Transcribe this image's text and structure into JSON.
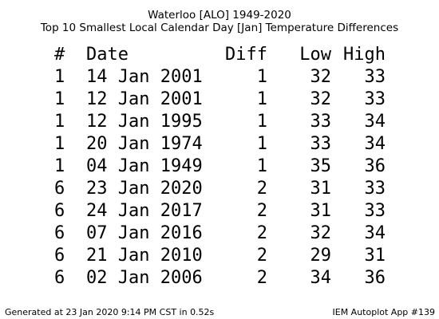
{
  "title_line1": "Waterloo [ALO] 1949-2020",
  "title_line2": "Top 10 Smallest Local Calendar Day [Jan] Temperature Differences",
  "chart_data": {
    "type": "table",
    "columns": [
      "#",
      "Date",
      "Diff",
      "Low",
      "High"
    ],
    "rows": [
      [
        "1",
        "14 Jan 2001",
        "1",
        "32",
        "33"
      ],
      [
        "1",
        "12 Jan 2001",
        "1",
        "32",
        "33"
      ],
      [
        "1",
        "12 Jan 1995",
        "1",
        "33",
        "34"
      ],
      [
        "1",
        "20 Jan 1974",
        "1",
        "33",
        "34"
      ],
      [
        "1",
        "04 Jan 1949",
        "1",
        "35",
        "36"
      ],
      [
        "6",
        "23 Jan 2020",
        "2",
        "31",
        "33"
      ],
      [
        "6",
        "24 Jan 2017",
        "2",
        "31",
        "33"
      ],
      [
        "6",
        "07 Jan 2016",
        "2",
        "32",
        "34"
      ],
      [
        "6",
        "21 Jan 2010",
        "2",
        "29",
        "31"
      ],
      [
        "6",
        "02 Jan 2006",
        "2",
        "34",
        "36"
      ]
    ]
  },
  "footer_left": "Generated at 23 Jan 2020 9:14 PM CST in 0.52s",
  "footer_right": "IEM Autoplot App #139"
}
